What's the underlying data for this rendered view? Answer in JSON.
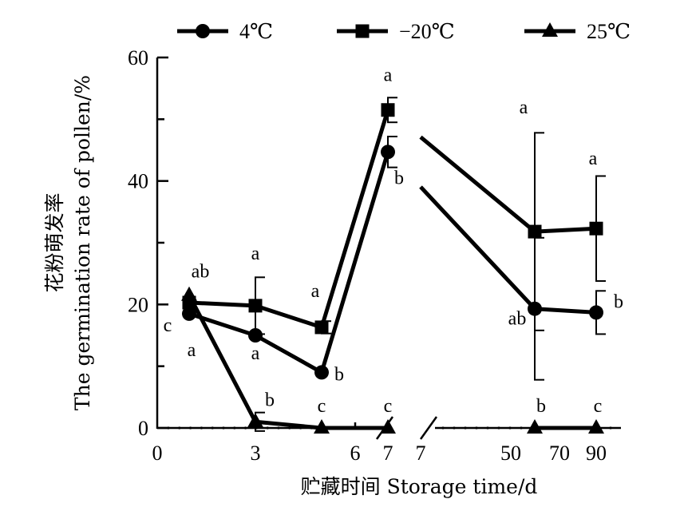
{
  "chart_data": {
    "type": "line",
    "xlabel": "贮藏时间 Storage time/d",
    "ylabel_cn": "花粉萌发率",
    "ylabel_en": "The germination rate of pollen/%",
    "ylim": [
      0,
      60
    ],
    "y_ticks": [
      "0",
      "20",
      "40",
      "60"
    ],
    "x_ticks": [
      "0",
      "3",
      "6",
      "7",
      "7",
      "50",
      "70",
      "90"
    ],
    "axis_break": true,
    "legend_position": "top",
    "series": [
      {
        "name": "4℃",
        "marker": "circle",
        "points": [
          {
            "x": "1",
            "y": 18.5,
            "err": 0,
            "label": "a"
          },
          {
            "x": "3",
            "y": 15.0,
            "err": 0,
            "label": "a"
          },
          {
            "x": "5",
            "y": 9.0,
            "err": 0,
            "label": "b"
          },
          {
            "x": "7",
            "y": 44.7,
            "err": 2.5,
            "label": "b"
          },
          {
            "x": "60",
            "y": 19.3,
            "err": 11.5,
            "label": "ab"
          },
          {
            "x": "90",
            "y": 18.7,
            "err": 3.5,
            "label": "b"
          }
        ]
      },
      {
        "name": "−20℃",
        "marker": "square",
        "points": [
          {
            "x": "1",
            "y": 20.3,
            "err": 0,
            "label": ""
          },
          {
            "x": "3",
            "y": 19.8,
            "err": 4.6,
            "label": "a"
          },
          {
            "x": "5",
            "y": 16.3,
            "err": 1.0,
            "label": "a"
          },
          {
            "x": "7",
            "y": 51.5,
            "err": 2.0,
            "label": "a"
          },
          {
            "x": "60",
            "y": 31.8,
            "err": 16.0,
            "label": "a"
          },
          {
            "x": "90",
            "y": 32.3,
            "err": 8.5,
            "label": "a"
          }
        ]
      },
      {
        "name": "25℃",
        "marker": "triangle",
        "points": [
          {
            "x": "1",
            "y": 21.5,
            "err": 0,
            "label": "ab"
          },
          {
            "x": "3",
            "y": 1.0,
            "err": 1.5,
            "label": "b"
          },
          {
            "x": "5",
            "y": 0.0,
            "err": 0,
            "label": "c"
          },
          {
            "x": "7",
            "y": 0.0,
            "err": 0,
            "label": "c"
          },
          {
            "x": "60",
            "y": 0.0,
            "err": 0,
            "label": "b"
          },
          {
            "x": "90",
            "y": 0.0,
            "err": 0,
            "label": "c"
          }
        ]
      }
    ],
    "extra_annotations": [
      {
        "text": "c",
        "near": "day 1, left of the points"
      },
      {
        "text": "a",
        "near": "day 1, below the points"
      }
    ]
  }
}
